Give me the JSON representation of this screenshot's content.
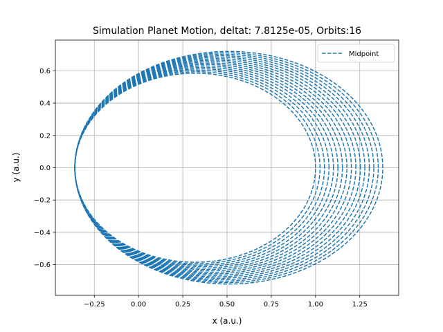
{
  "chart_data": {
    "type": "line",
    "title": "Simulation Planet Motion, deltat: 7.8125e-05, Orbits:16",
    "xlabel": "x (a.u.)",
    "ylabel": "y (a.u.)",
    "xlim": [
      -0.47,
      1.47
    ],
    "ylim": [
      -0.79,
      0.79
    ],
    "xticks": [
      -0.25,
      0.0,
      0.25,
      0.5,
      0.75,
      1.0,
      1.25
    ],
    "xtick_labels": [
      "−0.25",
      "0.00",
      "0.25",
      "0.50",
      "0.75",
      "1.00",
      "1.25"
    ],
    "yticks": [
      -0.6,
      -0.4,
      -0.2,
      0.0,
      0.2,
      0.4,
      0.6
    ],
    "ytick_labels": [
      "−0.6",
      "−0.4",
      "−0.2",
      "0.0",
      "0.2",
      "0.4",
      "0.6"
    ],
    "grid": true,
    "legend_position": "upper right",
    "series": [
      {
        "name": "Midpoint",
        "color": "#1f77b4",
        "linestyle": "dashed",
        "orbits": 16,
        "perihelion_x": -0.36,
        "aphelion_x_range": [
          1.0,
          1.38
        ],
        "half_height_range": [
          0.585,
          0.72
        ]
      }
    ]
  }
}
